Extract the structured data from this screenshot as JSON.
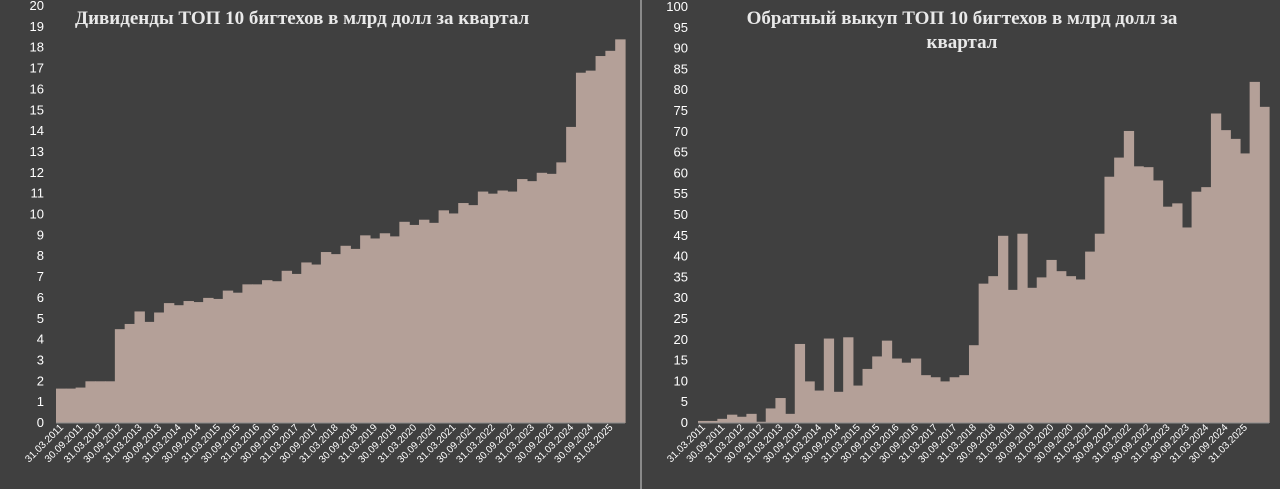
{
  "chart_data": [
    {
      "type": "area",
      "title": "Дивиденды ТОП 10 бигтехов в млрд долл за квартал",
      "xlabel": "",
      "ylabel": "",
      "ylim": [
        0,
        20
      ],
      "yticks": [
        0,
        1,
        2,
        3,
        4,
        5,
        6,
        7,
        8,
        9,
        10,
        11,
        12,
        13,
        14,
        15,
        16,
        17,
        18,
        19,
        20
      ],
      "x_tick_labels": [
        "31.03.2011",
        "30.09.2011",
        "31.03.2012",
        "30.09.2012",
        "31.03.2013",
        "30.09.2013",
        "31.03.2014",
        "30.09.2014",
        "31.03.2015",
        "30.09.2015",
        "31.03.2016",
        "30.09.2016",
        "31.03.2017",
        "30.09.2017",
        "31.03.2018",
        "30.09.2018",
        "31.03.2019",
        "30.09.2019",
        "31.03.2020",
        "30.09.2020",
        "31.03.2021",
        "30.09.2021",
        "31.03.2022",
        "30.09.2022",
        "31.03.2023",
        "30.09.2023",
        "31.03.2024",
        "30.09.2024",
        "31.03.2025"
      ],
      "grid": false,
      "fill_color": "#b4a098",
      "series": [
        {
          "values": [
            1.65,
            1.65,
            1.7,
            2.0,
            2.0,
            2.0,
            4.5,
            4.75,
            5.35,
            4.85,
            5.3,
            5.75,
            5.65,
            5.85,
            5.8,
            6.0,
            5.95,
            6.35,
            6.25,
            6.65,
            6.65,
            6.85,
            6.8,
            7.3,
            7.15,
            7.7,
            7.6,
            8.2,
            8.1,
            8.5,
            8.35,
            9.0,
            8.85,
            9.1,
            8.95,
            9.65,
            9.5,
            9.75,
            9.6,
            10.2,
            10.05,
            10.55,
            10.45,
            11.1,
            11.0,
            11.15,
            11.1,
            11.7,
            11.6,
            12.0,
            11.95,
            12.5,
            14.2,
            16.8,
            16.9,
            17.6,
            17.85,
            18.4
          ]
        }
      ]
    },
    {
      "type": "area",
      "title": "Обратный выкуп ТОП 10 бигтехов в млрд долл за квартал",
      "xlabel": "",
      "ylabel": "",
      "ylim": [
        0,
        100
      ],
      "yticks": [
        0,
        5,
        10,
        15,
        20,
        25,
        30,
        35,
        40,
        45,
        50,
        55,
        60,
        65,
        70,
        75,
        80,
        85,
        90,
        95,
        100
      ],
      "x_tick_labels": [
        "31.03.2011",
        "30.09.2011",
        "31.03.2012",
        "30.09.2012",
        "31.03.2013",
        "30.09.2013",
        "31.03.2014",
        "30.09.2014",
        "31.03.2015",
        "30.09.2015",
        "31.03.2016",
        "30.09.2016",
        "31.03.2017",
        "30.09.2017",
        "31.03.2018",
        "30.09.2018",
        "31.03.2019",
        "30.09.2019",
        "31.03.2020",
        "30.09.2020",
        "31.03.2021",
        "30.09.2021",
        "31.03.2022",
        "30.09.2022",
        "31.03.2023",
        "30.09.2023",
        "31.03.2024",
        "30.09.2024",
        "31.03.2025"
      ],
      "grid": false,
      "fill_color": "#b4a098",
      "series": [
        {
          "values": [
            0.5,
            0.5,
            1.0,
            2.0,
            1.5,
            2.2,
            0.3,
            3.5,
            6.0,
            2.2,
            19.0,
            10.0,
            7.8,
            20.3,
            7.5,
            20.6,
            9.0,
            13.0,
            16.0,
            19.8,
            15.5,
            14.5,
            15.5,
            11.5,
            11.0,
            10.0,
            11.0,
            11.5,
            18.7,
            33.5,
            35.3,
            45.0,
            32.0,
            45.5,
            32.5,
            35.0,
            39.2,
            36.5,
            35.3,
            34.5,
            41.2,
            45.5,
            59.2,
            63.8,
            70.2,
            61.7,
            61.5,
            58.3,
            52.0,
            52.8,
            47.0,
            55.6,
            56.7,
            74.4,
            70.4,
            68.3,
            64.8,
            82.0,
            76.0
          ]
        }
      ]
    }
  ]
}
